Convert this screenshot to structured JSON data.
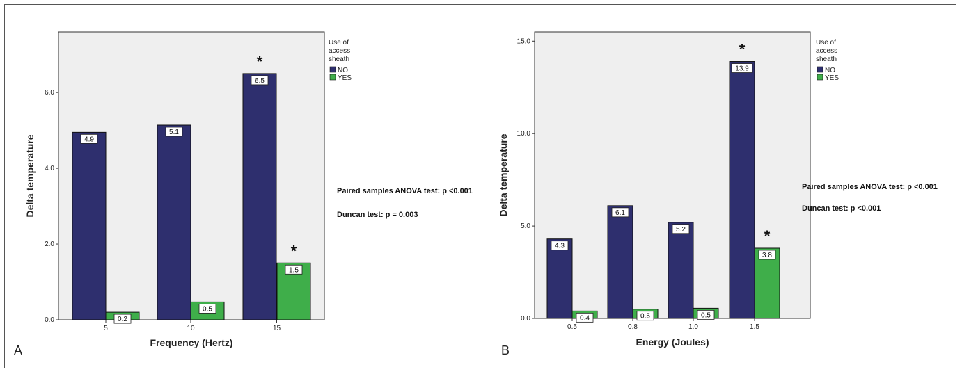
{
  "colors": {
    "no": "#2e2f6e",
    "yes": "#3fae4a",
    "plot_bg": "#efefef"
  },
  "chart_data": [
    {
      "type": "bar",
      "panel_label": "A",
      "xlabel": "Frequency (Hertz)",
      "ylabel": "Delta temperature",
      "categories": [
        "5",
        "10",
        "15"
      ],
      "ylim": [
        0,
        7.6
      ],
      "yticks": [
        0,
        2,
        4,
        6
      ],
      "ytick_labels": [
        "0.0",
        "2.0",
        "4.0",
        "6.0"
      ],
      "series": [
        {
          "name": "NO",
          "values": [
            4.95,
            5.14,
            6.5
          ],
          "labels": [
            "4.9",
            "5.1",
            "6.5"
          ],
          "stars": [
            false,
            false,
            true
          ]
        },
        {
          "name": "YES",
          "values": [
            0.2,
            0.47,
            1.5
          ],
          "labels": [
            "0.2",
            "0.5",
            "1.5"
          ],
          "stars": [
            false,
            false,
            true
          ]
        }
      ],
      "legend": {
        "title_lines": [
          "Use of",
          "access",
          "sheath"
        ],
        "position": "outside-right-top"
      },
      "star_symbol": "*",
      "annotations": [
        "Paired samples ANOVA test: p <0.001",
        "Duncan test: p = 0.003"
      ],
      "grid": false
    },
    {
      "type": "bar",
      "panel_label": "B",
      "xlabel": "Energy (Joules)",
      "ylabel": "Delta temperature",
      "categories": [
        "0.5",
        "0.8",
        "1.0",
        "1.5"
      ],
      "ylim": [
        0,
        15.5
      ],
      "yticks": [
        0,
        5,
        10,
        15
      ],
      "ytick_labels": [
        "0.0",
        "5.0",
        "10.0",
        "15.0"
      ],
      "series": [
        {
          "name": "NO",
          "values": [
            4.3,
            6.1,
            5.2,
            13.9
          ],
          "labels": [
            "4.3",
            "6.1",
            "5.2",
            "13.9"
          ],
          "stars": [
            false,
            false,
            false,
            true
          ]
        },
        {
          "name": "YES",
          "values": [
            0.4,
            0.5,
            0.55,
            3.8
          ],
          "labels": [
            "0.4",
            "0.5",
            "0.5",
            "3.8"
          ],
          "stars": [
            false,
            false,
            false,
            true
          ]
        }
      ],
      "legend": {
        "title_lines": [
          "Use of",
          "access",
          "sheath"
        ],
        "position": "outside-right-top"
      },
      "star_symbol": "*",
      "annotations": [
        "Paired samples ANOVA test: p <0.001",
        "Duncan test: p <0.001"
      ],
      "grid": false
    }
  ]
}
